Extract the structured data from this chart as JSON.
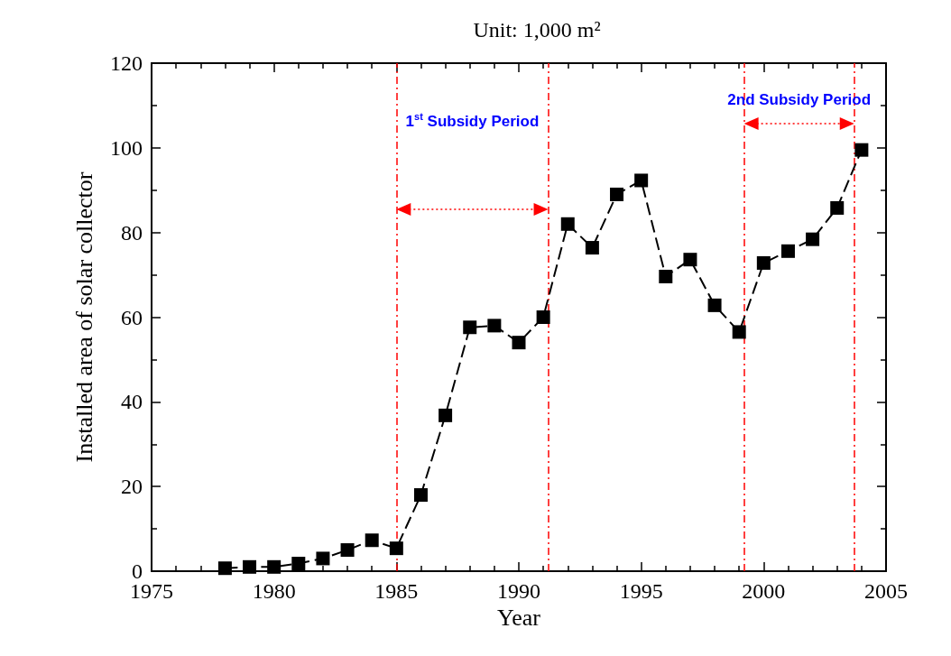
{
  "chart_data": {
    "type": "line",
    "title": "Unit: 1,000 m²",
    "xlabel": "Year",
    "ylabel": "Installed area of solar collector",
    "x": [
      1978,
      1979,
      1980,
      1981,
      1982,
      1983,
      1984,
      1985,
      1986,
      1987,
      1988,
      1989,
      1990,
      1991,
      1992,
      1993,
      1994,
      1995,
      1996,
      1997,
      1998,
      1999,
      2000,
      2001,
      2002,
      2003,
      2004
    ],
    "series": [
      {
        "color": "#000000",
        "values": [
          0.7,
          1,
          1,
          1.8,
          3,
          5,
          7.3,
          5.4,
          18,
          36.8,
          57.6,
          58,
          54,
          60,
          82,
          76.4,
          89,
          92.3,
          69.6,
          73.6,
          62.8,
          56.5,
          72.8,
          75.6,
          78.4,
          85.8,
          99.5
        ]
      }
    ],
    "xlim": [
      1975,
      2005
    ],
    "xticks": [
      1975,
      1980,
      1985,
      1990,
      1995,
      2000,
      2005
    ],
    "ylim": [
      0,
      120
    ],
    "yticks": [
      0,
      20,
      40,
      60,
      80,
      100,
      120
    ],
    "grid": false,
    "marker": "square",
    "line_style": "dashed",
    "ref_lines": [
      {
        "axis": "x",
        "value": 1985,
        "color": "#ff0000",
        "line_style": "dashed"
      },
      {
        "axis": "x",
        "value": 1991.2,
        "color": "#ff0000",
        "line_style": "dashed"
      },
      {
        "axis": "x",
        "value": 1999.2,
        "color": "#ff0000",
        "line_style": "dashed"
      },
      {
        "axis": "x",
        "value": 2003.7,
        "color": "#ff0000",
        "line_style": "dashed"
      }
    ],
    "annotations": [
      "1$^{st}$ Subsidy Period",
      "2nd Subsidy Period"
    ]
  }
}
